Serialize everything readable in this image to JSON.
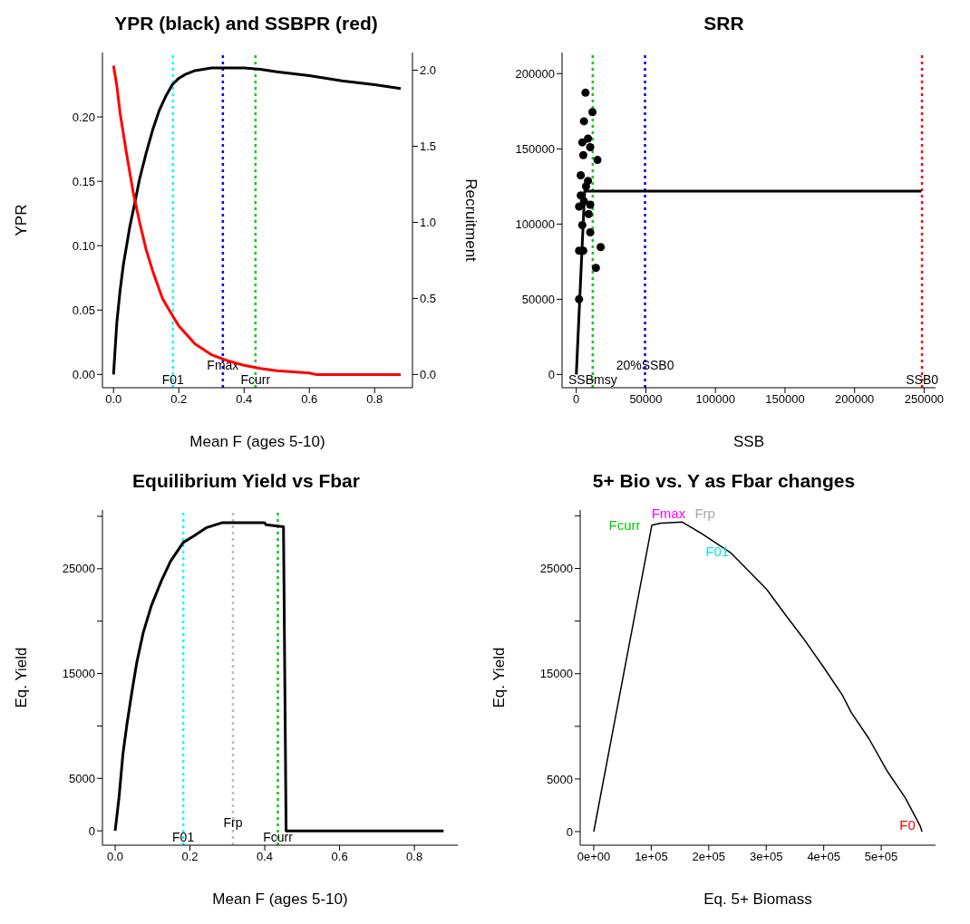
{
  "chart_data": [
    {
      "type": "line",
      "title": "YPR (black) and SSBPR (red)",
      "xlabel": "Mean F (ages 5-10)",
      "ylabel": "YPR",
      "y2label": "Recruitment",
      "xlim": [
        -0.034,
        0.916
      ],
      "xticks": [
        {
          "value": 0,
          "label": "0.0"
        },
        {
          "value": 0.2,
          "label": "0.2"
        },
        {
          "value": 0.4,
          "label": "0.4"
        },
        {
          "value": 0.6,
          "label": "0.6"
        },
        {
          "value": 0.8,
          "label": "0.8"
        }
      ],
      "ylim": [
        -0.0103,
        0.25
      ],
      "yticks": [
        {
          "value": 0,
          "label": "0.00"
        },
        {
          "value": 0.05,
          "label": "0.05"
        },
        {
          "value": 0.1,
          "label": "0.10"
        },
        {
          "value": 0.15,
          "label": "0.15"
        },
        {
          "value": 0.2,
          "label": "0.20"
        }
      ],
      "y2lim": [
        -0.087,
        2.116
      ],
      "y2ticks": [
        {
          "value": 0,
          "label": "0.0"
        },
        {
          "value": 0.5,
          "label": "0.5"
        },
        {
          "value": 1,
          "label": "1.0"
        },
        {
          "value": 1.5,
          "label": "1.5"
        },
        {
          "value": 2,
          "label": "2.0"
        }
      ],
      "grid": false,
      "legend": false,
      "series": [
        {
          "color": "#000000",
          "x": [
            0,
            0.01,
            0.02,
            0.03,
            0.04,
            0.05,
            0.065,
            0.08,
            0.1,
            0.12,
            0.14,
            0.16,
            0.18,
            0.2,
            0.22,
            0.25,
            0.3,
            0.4,
            0.45,
            0.5,
            0.6,
            0.7,
            0.8,
            0.88
          ],
          "values": [
            0,
            0.04,
            0.065,
            0.085,
            0.1,
            0.115,
            0.133,
            0.152,
            0.172,
            0.19,
            0.205,
            0.216,
            0.225,
            0.23,
            0.233,
            0.236,
            0.238,
            0.238,
            0.237,
            0.235,
            0.232,
            0.228,
            0.225,
            0.222
          ]
        },
        {
          "color": "#ff0000",
          "axis": "y2",
          "x": [
            0,
            0.01,
            0.02,
            0.04,
            0.06,
            0.08,
            0.1,
            0.12,
            0.15,
            0.18,
            0.2,
            0.25,
            0.3,
            0.35,
            0.4,
            0.45,
            0.5,
            0.6,
            0.62,
            0.88
          ],
          "values": [
            2.03,
            1.9,
            1.72,
            1.45,
            1.2,
            1.0,
            0.82,
            0.68,
            0.5,
            0.39,
            0.32,
            0.2,
            0.13,
            0.09,
            0.06,
            0.04,
            0.025,
            0.01,
            0,
            0
          ]
        }
      ],
      "ref_lines": [
        {
          "axis": "x",
          "value": 0.182,
          "label": "F01",
          "color": "#00ffff",
          "line_style": "dotted"
        },
        {
          "axis": "x",
          "value": 0.335,
          "label": "Fmax",
          "color": "#0000ff",
          "line_style": "dotted"
        },
        {
          "axis": "x",
          "value": 0.435,
          "label": "Fcurr",
          "color": "#00cd00",
          "line_style": "dotted"
        }
      ]
    },
    {
      "type": "scatter",
      "title": "SRR",
      "xlabel": "SSB",
      "xlim": [
        -10245,
        258200
      ],
      "xticks": [
        0,
        50000,
        100000,
        150000,
        200000,
        250000
      ],
      "ylim": [
        -8800,
        214000
      ],
      "yticks": [
        0,
        50000,
        100000,
        150000,
        200000
      ],
      "grid": false,
      "legend": false,
      "series": [
        {
          "color": "#000000",
          "marker": "circle",
          "x": [
            6600,
            11600,
            5500,
            8400,
            4300,
            10000,
            5000,
            15200,
            3200,
            8400,
            7000,
            3200,
            2000,
            5500,
            10000,
            8900,
            4300,
            10000,
            17500,
            2000,
            5000,
            14100,
            2000
          ],
          "values": [
            187300,
            174400,
            168300,
            156800,
            154300,
            151100,
            145800,
            142600,
            132400,
            128700,
            125000,
            119000,
            111600,
            115200,
            112800,
            106700,
            99300,
            94500,
            84700,
            82300,
            82300,
            70800,
            50000
          ]
        },
        {
          "type": "line",
          "color": "#000000",
          "x": [
            0,
            6000,
            248000
          ],
          "values": [
            0,
            121800,
            121800
          ]
        }
      ],
      "ref_lines": [
        {
          "axis": "x",
          "value": 11800,
          "label": "SSBmsy",
          "color": "#00cd00",
          "line_style": "dotted"
        },
        {
          "axis": "x",
          "value": 49400,
          "label": "20%SSB0",
          "color": "#0000ff",
          "line_style": "dotted"
        },
        {
          "axis": "x",
          "value": 248500,
          "label": "SSB0",
          "color": "#ff0000",
          "line_style": "dotted"
        }
      ]
    },
    {
      "type": "line",
      "title": "Equilibrium Yield vs Fbar",
      "xlabel": "Mean F (ages 5-10)",
      "ylabel": "Eq. Yield",
      "xlim": [
        -0.034,
        0.916
      ],
      "xticks": [
        {
          "value": 0,
          "label": "0.0"
        },
        {
          "value": 0.2,
          "label": "0.2"
        },
        {
          "value": 0.4,
          "label": "0.4"
        },
        {
          "value": 0.6,
          "label": "0.6"
        },
        {
          "value": 0.8,
          "label": "0.8"
        }
      ],
      "ylim": [
        -1370,
        30600
      ],
      "yticks": [
        0,
        5000,
        {
          "value": 10000,
          "label": null
        },
        15000,
        {
          "value": 20000,
          "label": null
        },
        25000,
        {
          "value": 30000,
          "label": null
        }
      ],
      "grid": false,
      "legend": false,
      "series": [
        {
          "color": "#000000",
          "x": [
            0,
            0.0104,
            0.0207,
            0.032,
            0.045,
            0.058,
            0.075,
            0.097,
            0.123,
            0.148,
            0.182,
            0.209,
            0.243,
            0.287,
            0.399,
            0.403,
            0.45,
            0.457,
            0.878
          ],
          "values": [
            0,
            3200,
            7300,
            10300,
            13300,
            16100,
            18900,
            21500,
            23800,
            25700,
            27500,
            28100,
            28900,
            29400,
            29400,
            29200,
            29000,
            0,
            0
          ]
        }
      ],
      "ref_lines": [
        {
          "axis": "x",
          "value": 0.182,
          "label": "F01",
          "color": "#00ffff",
          "line_style": "dotted"
        },
        {
          "axis": "x",
          "value": 0.315,
          "label": "Frp",
          "color": "#bebebe",
          "line_style": "dotted"
        },
        {
          "axis": "x",
          "value": 0.435,
          "label": "Fcurr",
          "color": "#00cd00",
          "line_style": "dotted"
        }
      ]
    },
    {
      "type": "line",
      "title": "5+ Bio vs. Y as Fbar changes",
      "xlabel": "Eq. 5+ Biomass",
      "ylabel": "Eq. Yield",
      "xlim": [
        -23600,
        594500
      ],
      "xticks": [
        {
          "value": 0,
          "label": "0e+00"
        },
        {
          "value": 100000,
          "label": "1e+05"
        },
        {
          "value": 200000,
          "label": "2e+05"
        },
        {
          "value": 300000,
          "label": "3e+05"
        },
        {
          "value": 400000,
          "label": "4e+05"
        },
        {
          "value": 500000,
          "label": "5e+05"
        }
      ],
      "ylim": [
        -1290,
        30550
      ],
      "yticks": [
        0,
        5000,
        {
          "value": 10000,
          "label": null
        },
        15000,
        {
          "value": 20000,
          "label": null
        },
        25000,
        {
          "value": 30000,
          "label": null
        }
      ],
      "grid": false,
      "legend": false,
      "series": [
        {
          "color": "#000000",
          "x": [
            0,
            101000,
            117000,
            154000,
            185000,
            238000,
            274000,
            301000,
            332000,
            364000,
            400000,
            432000,
            448000,
            479000,
            511000,
            542000,
            568000,
            571000
          ],
          "values": [
            0,
            29100,
            29300,
            29400,
            28400,
            26500,
            24500,
            23000,
            20700,
            18400,
            15600,
            13000,
            11300,
            8800,
            5700,
            3200,
            500,
            0
          ]
        }
      ],
      "annotations": [
        {
          "text": "Fcurr",
          "x": 101000,
          "y": 29100
        },
        {
          "text": "Fmax",
          "x": 130000,
          "y": 29300
        },
        {
          "text": "Frp",
          "x": 143000,
          "y": 29300
        },
        {
          "text": "F01",
          "x": 215000,
          "y": 27900
        },
        {
          "text": "F0",
          "x": 571000,
          "y": 0
        }
      ]
    }
  ]
}
